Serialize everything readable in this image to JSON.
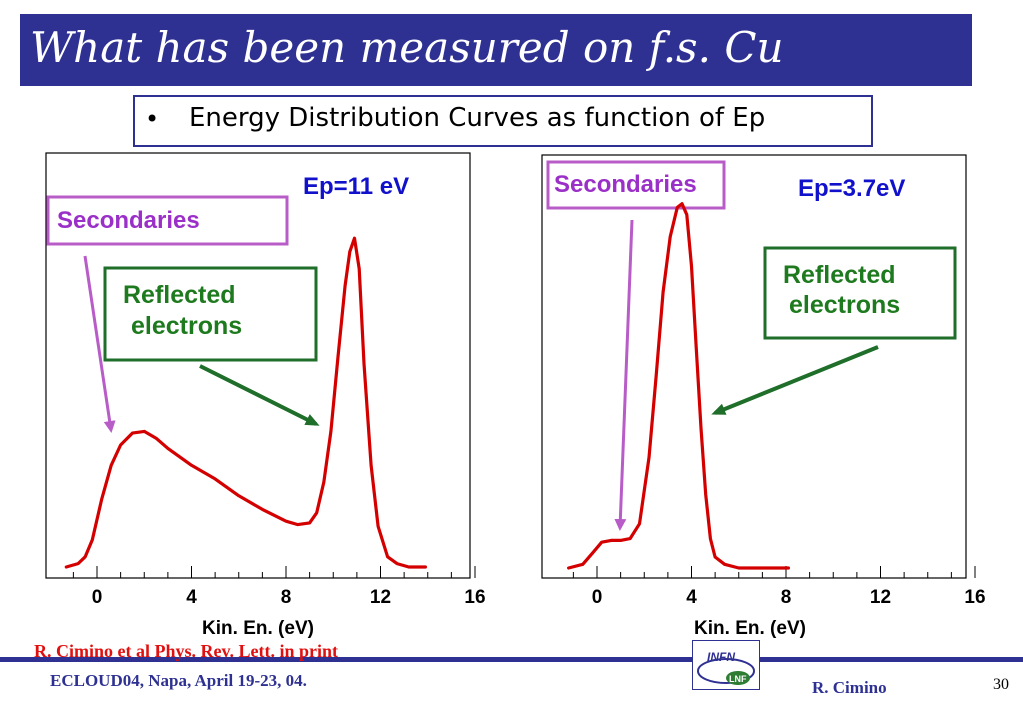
{
  "slide": {
    "title": "What has been measured on f.s. Cu",
    "bullet": "•",
    "subtitle": "Energy Distribution Curves as function of Ep",
    "citation": "R. Cimino et al Phys. Rev. Lett. in print",
    "conference": "ECLOUD04, Napa, April 19-23, 04.",
    "author": "R. Cimino",
    "page_number": "30",
    "logo_text_top": "INFN",
    "logo_text_bottom": "LNF",
    "colors": {
      "title_bar": "#2e3192",
      "curve": "#d40000",
      "secondaries": "#9b30c8",
      "reflected": "#1e7a1e",
      "ep_label": "#1111cc",
      "citation": "#e01010"
    }
  },
  "chart_data": [
    {
      "type": "line",
      "title": "Ep=11 eV",
      "xlabel": "Kin. En. (eV)",
      "ylabel": "",
      "xlim": [
        -2,
        16
      ],
      "ylim": [
        0,
        1
      ],
      "xticks": [
        "0",
        "4",
        "8",
        "12",
        "16"
      ],
      "annotations": {
        "secondaries": "Secondaries",
        "reflected_line1": "Reflected",
        "reflected_line2": "electrons"
      },
      "series": [
        {
          "x": [
            -1.3,
            -0.8,
            -0.5,
            -0.2,
            0.2,
            0.6,
            1.0,
            1.5,
            2.0,
            2.5,
            3.0,
            4.0,
            5.0,
            6.0,
            7.0,
            8.0,
            8.5,
            9.0,
            9.3,
            9.6,
            9.9,
            10.2,
            10.5,
            10.7,
            10.9,
            11.1,
            11.3,
            11.6,
            11.9,
            12.3,
            12.7,
            13.2,
            13.9
          ],
          "y": [
            0.0,
            0.01,
            0.03,
            0.08,
            0.2,
            0.3,
            0.36,
            0.395,
            0.4,
            0.38,
            0.35,
            0.3,
            0.26,
            0.21,
            0.17,
            0.135,
            0.125,
            0.13,
            0.16,
            0.25,
            0.4,
            0.62,
            0.83,
            0.93,
            0.97,
            0.88,
            0.6,
            0.3,
            0.12,
            0.03,
            0.01,
            0.0,
            0.0
          ]
        }
      ]
    },
    {
      "type": "line",
      "title": "Ep=3.7eV",
      "xlabel": "Kin. En. (eV)",
      "ylabel": "",
      "xlim": [
        -2,
        16
      ],
      "ylim": [
        0,
        1
      ],
      "xticks": [
        "0",
        "4",
        "8",
        "12",
        "16"
      ],
      "annotations": {
        "secondaries": "Secondaries",
        "reflected_line1": "Reflected",
        "reflected_line2": "electrons"
      },
      "series": [
        {
          "x": [
            -1.2,
            -0.6,
            -0.2,
            0.2,
            0.6,
            1.0,
            1.4,
            1.8,
            2.2,
            2.5,
            2.8,
            3.1,
            3.4,
            3.6,
            3.8,
            4.0,
            4.2,
            4.4,
            4.6,
            4.8,
            5.0,
            5.4,
            6.0,
            7.0,
            8.1
          ],
          "y": [
            0.0,
            0.01,
            0.04,
            0.07,
            0.075,
            0.075,
            0.08,
            0.12,
            0.3,
            0.52,
            0.75,
            0.9,
            0.98,
            0.99,
            0.96,
            0.82,
            0.6,
            0.38,
            0.2,
            0.08,
            0.03,
            0.01,
            0.0,
            0.0,
            0.0
          ]
        }
      ]
    }
  ]
}
